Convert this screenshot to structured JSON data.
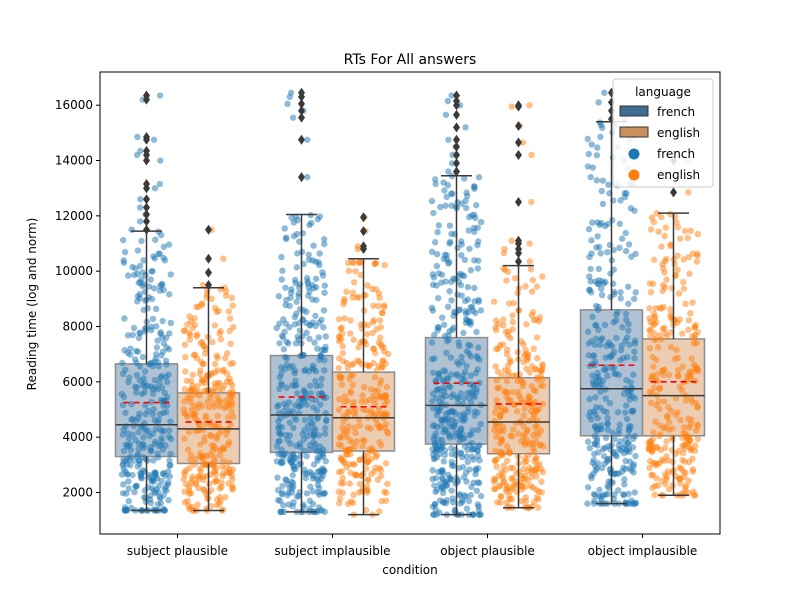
{
  "chart_data": {
    "type": "box",
    "title": "RTs For All answers",
    "xlabel": "condition",
    "ylabel": "Reading time (log and norm)",
    "ylim": [
      500,
      17200
    ],
    "yticks": [
      2000,
      4000,
      6000,
      8000,
      10000,
      12000,
      14000,
      16000
    ],
    "categories": [
      "subject plausible",
      "subject implausible",
      "object plausible",
      "object implausible"
    ],
    "legend": {
      "title": "language",
      "position": "top-right",
      "entries": [
        {
          "label": "french",
          "kind": "box",
          "color": "#3f6e92"
        },
        {
          "label": "english",
          "kind": "box",
          "color": "#c98f5c"
        },
        {
          "label": "french",
          "kind": "dot",
          "color": "#1f77b4"
        },
        {
          "label": "english",
          "kind": "dot",
          "color": "#ff7f0e"
        }
      ]
    },
    "series": [
      {
        "name": "french",
        "box_color": "#aec2d3",
        "dot_color": "#1f77b4",
        "boxes": [
          {
            "whisker_low": 1350,
            "q1": 3300,
            "median": 4450,
            "q3": 6650,
            "whisker_high": 11450,
            "mean": 5250,
            "outliers": [
              11500,
              11800,
              12050,
              12300,
              12600,
              13000,
              13150,
              14000,
              14200,
              14350,
              14750,
              14850,
              16200,
              16350
            ]
          },
          {
            "whisker_low": 1300,
            "q1": 3450,
            "median": 4800,
            "q3": 6950,
            "whisker_high": 12050,
            "mean": 5450,
            "outliers": [
              13400,
              14750,
              15550,
              15800,
              16050,
              16300,
              16450
            ]
          },
          {
            "whisker_low": 1200,
            "q1": 3750,
            "median": 5150,
            "q3": 7600,
            "whisker_high": 13450,
            "mean": 5950,
            "outliers": [
              13600,
              13900,
              14200,
              14500,
              14750,
              15200,
              15650,
              16000,
              16150,
              16350
            ]
          },
          {
            "whisker_low": 1600,
            "q1": 4050,
            "median": 5750,
            "q3": 8600,
            "whisker_high": 15400,
            "mean": 6600,
            "outliers": [
              15500,
              15800,
              16100,
              16450
            ]
          }
        ]
      },
      {
        "name": "english",
        "box_color": "#eccdb2",
        "dot_color": "#ff7f0e",
        "boxes": [
          {
            "whisker_low": 1350,
            "q1": 3050,
            "median": 4300,
            "q3": 5600,
            "whisker_high": 9400,
            "mean": 4550,
            "outliers": [
              9500,
              9950,
              10450,
              11500
            ]
          },
          {
            "whisker_low": 1200,
            "q1": 3500,
            "median": 4700,
            "q3": 6350,
            "whisker_high": 10450,
            "mean": 5100,
            "outliers": [
              10800,
              10900,
              11450,
              11950
            ]
          },
          {
            "whisker_low": 1450,
            "q1": 3400,
            "median": 4550,
            "q3": 6150,
            "whisker_high": 10200,
            "mean": 5200,
            "outliers": [
              10350,
              10650,
              10800,
              11000,
              11100,
              12500,
              14200,
              14650,
              15250,
              15950,
              16000
            ]
          },
          {
            "whisker_low": 1900,
            "q1": 4050,
            "median": 5500,
            "q3": 7550,
            "whisker_high": 12100,
            "mean": 6000,
            "outliers": [
              12850,
              14000
            ]
          }
        ]
      }
    ],
    "points_per_box": [
      [
        330,
        300
      ],
      [
        360,
        280
      ],
      [
        420,
        300
      ],
      [
        340,
        290
      ]
    ]
  }
}
